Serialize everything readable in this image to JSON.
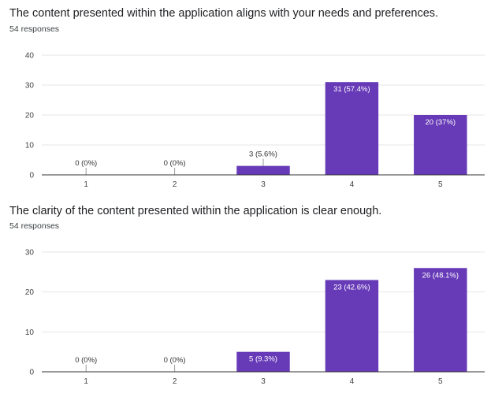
{
  "charts": [
    {
      "title": "The content presented within the application aligns with your needs and preferences.",
      "responses": "54 responses"
    },
    {
      "title": "The clarity of the content presented within the application is clear enough.",
      "responses": "54 responses"
    }
  ],
  "colors": {
    "bar": "#673ab7",
    "grid": "#e6e6e6",
    "axis": "#333333"
  },
  "chart_data": [
    {
      "type": "bar",
      "title": "The content presented within the application aligns with your needs and preferences.",
      "subtitle": "54 responses",
      "categories": [
        "1",
        "2",
        "3",
        "4",
        "5"
      ],
      "values": [
        0,
        0,
        3,
        31,
        20
      ],
      "data_labels": [
        "0 (0%)",
        "0 (0%)",
        "3 (5.6%)",
        "31 (57.4%)",
        "20 (37%)"
      ],
      "yticks": [
        0,
        10,
        20,
        30,
        40
      ],
      "ylim": [
        0,
        40
      ],
      "xlabel": "",
      "ylabel": "",
      "grid": true,
      "legend": "none"
    },
    {
      "type": "bar",
      "title": "The clarity of the content presented within the application is clear enough.",
      "subtitle": "54 responses",
      "categories": [
        "1",
        "2",
        "3",
        "4",
        "5"
      ],
      "values": [
        0,
        0,
        5,
        23,
        26
      ],
      "data_labels": [
        "0 (0%)",
        "0 (0%)",
        "5 (9.3%)",
        "23 (42.6%)",
        "26 (48.1%)"
      ],
      "yticks": [
        0,
        10,
        20,
        30
      ],
      "ylim": [
        0,
        30
      ],
      "xlabel": "",
      "ylabel": "",
      "grid": true,
      "legend": "none"
    }
  ]
}
